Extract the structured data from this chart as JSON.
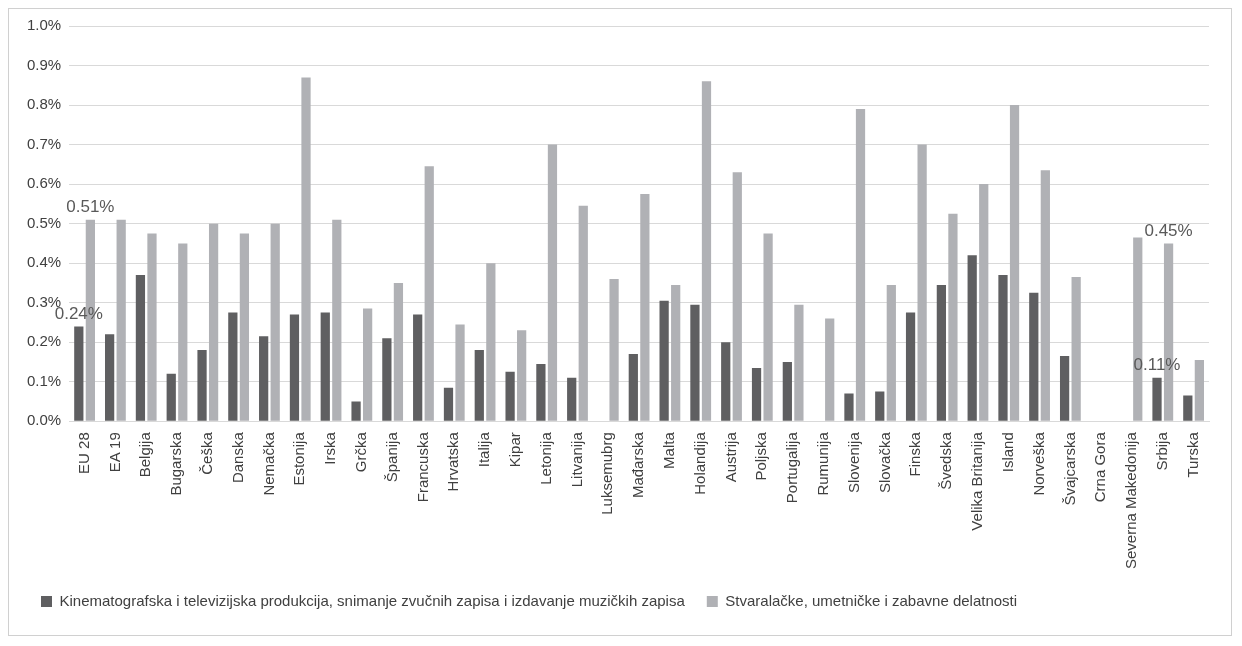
{
  "chart_data": {
    "type": "bar",
    "categories": [
      "EU 28",
      "EA 19",
      "Belgija",
      "Bugarska",
      "Češka",
      "Danska",
      "Nemačka",
      "Estonija",
      "Irska",
      "Grčka",
      "Španija",
      "Francuska",
      "Hrvatska",
      "Italija",
      "Kipar",
      "Letonija",
      "Litvanija",
      "Luksemubrg",
      "Mađarska",
      "Malta",
      "Holandija",
      "Austrija",
      "Poljska",
      "Portugalija",
      "Rumunija",
      "Slovenija",
      "Slovačka",
      "Finska",
      "Švedska",
      "Velika Britanija",
      "Island",
      "Norveška",
      "Švajcarska",
      "Crna Gora",
      "Severna Makedonija",
      "Srbija",
      "Turska"
    ],
    "series": [
      {
        "name": "Kinematografska i televizijska produkcija, snimanje zvučnih zapisa i izdavanje muzičkih zapisa",
        "color": "#5f5f61",
        "values": [
          0.24,
          0.22,
          0.37,
          0.12,
          0.18,
          0.275,
          0.215,
          0.27,
          0.275,
          0.05,
          0.21,
          0.27,
          0.085,
          0.18,
          0.125,
          0.145,
          0.11,
          null,
          0.17,
          0.305,
          0.295,
          0.2,
          0.135,
          0.15,
          null,
          0.07,
          0.075,
          0.275,
          0.345,
          0.42,
          0.37,
          0.325,
          0.165,
          null,
          null,
          0.11,
          0.065
        ],
        "value_labels": [
          "0.24%",
          null,
          null,
          null,
          null,
          null,
          null,
          null,
          null,
          null,
          null,
          null,
          null,
          null,
          null,
          null,
          null,
          null,
          null,
          null,
          null,
          null,
          null,
          null,
          null,
          null,
          null,
          null,
          null,
          null,
          null,
          null,
          null,
          null,
          null,
          "0.11%",
          null
        ]
      },
      {
        "name": "Stvaralačke, umetničke i zabavne delatnosti",
        "color": "#b0b1b5",
        "values": [
          0.51,
          0.51,
          0.475,
          0.45,
          0.5,
          0.475,
          0.5,
          0.87,
          0.51,
          0.285,
          0.35,
          0.645,
          0.245,
          0.4,
          0.23,
          0.7,
          0.545,
          0.36,
          0.575,
          0.345,
          0.86,
          0.63,
          0.475,
          0.295,
          0.26,
          0.79,
          0.345,
          0.7,
          0.525,
          0.6,
          0.8,
          0.635,
          0.365,
          null,
          0.465,
          0.45,
          0.155
        ],
        "value_labels": [
          "0.51%",
          null,
          null,
          null,
          null,
          null,
          null,
          null,
          null,
          null,
          null,
          null,
          null,
          null,
          null,
          null,
          null,
          null,
          null,
          null,
          null,
          null,
          null,
          null,
          null,
          null,
          null,
          null,
          null,
          null,
          null,
          null,
          null,
          null,
          null,
          "0.45%",
          null
        ]
      }
    ],
    "ylim": [
      0,
      1
    ],
    "yticks": [
      {
        "value": 0,
        "label": "0.0%"
      },
      {
        "value": 0.1,
        "label": "0.1%"
      },
      {
        "value": 0.2,
        "label": "0.2%"
      },
      {
        "value": 0.3,
        "label": "0.3%"
      },
      {
        "value": 0.4,
        "label": "0.4%"
      },
      {
        "value": 0.5,
        "label": "0.5%"
      },
      {
        "value": 0.6,
        "label": "0.6%"
      },
      {
        "value": 0.7,
        "label": "0.7%"
      },
      {
        "value": 0.8,
        "label": "0.8%"
      },
      {
        "value": 0.9,
        "label": "0.9%"
      },
      {
        "value": 1,
        "label": "1.0%"
      }
    ],
    "grid": "y",
    "legend": "bottom"
  }
}
